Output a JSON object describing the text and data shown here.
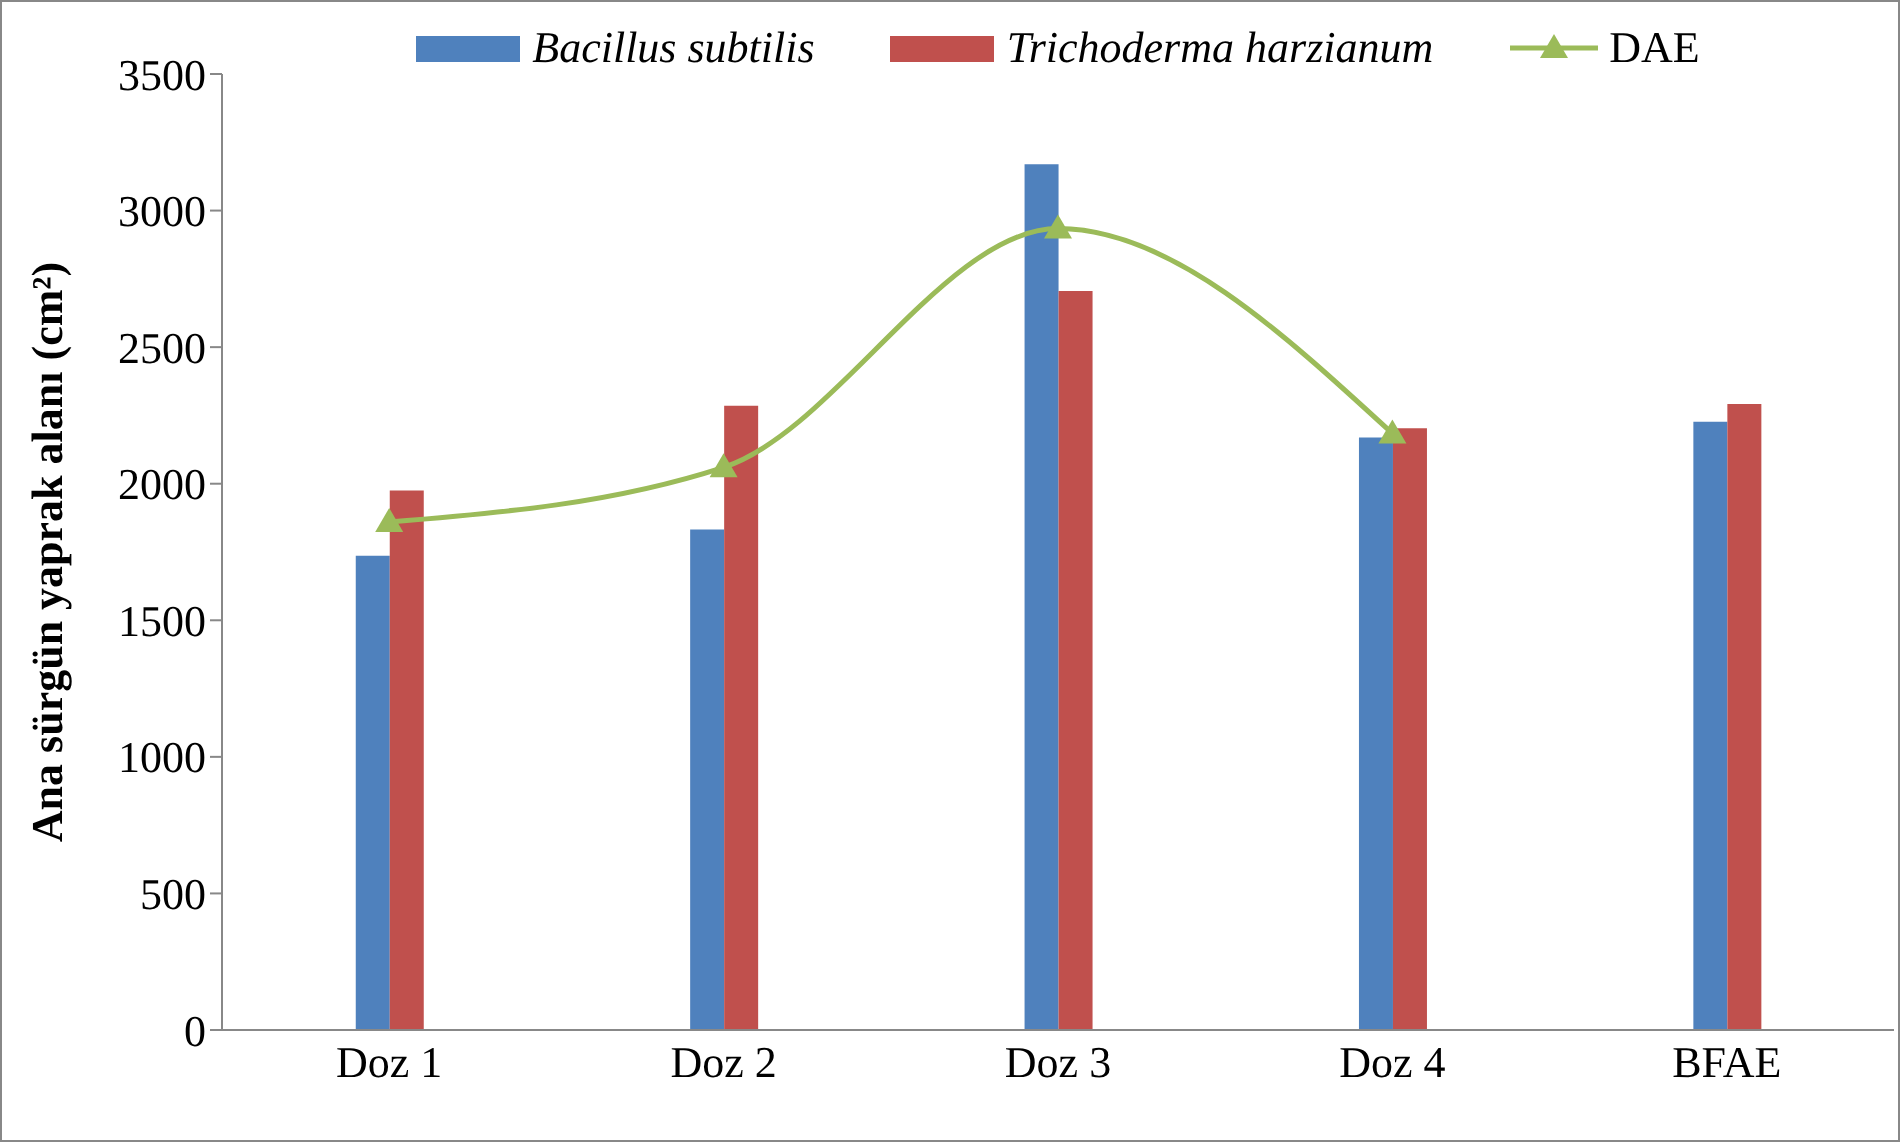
{
  "chart_data": {
    "type": "bar",
    "ylabel": "Ana sürgün yaprak alanı (cm²)",
    "categories": [
      "Doz 1",
      "Doz 2",
      "Doz 3",
      "Doz 4",
      "BFAE"
    ],
    "series": [
      {
        "name": "Bacillus subtilis",
        "color": "#4f81bd",
        "values": [
          1736,
          1832,
          3170,
          2169,
          2227
        ]
      },
      {
        "name": "Trichoderma harzianum",
        "color": "#c0504d",
        "values": [
          1975,
          2285,
          2706,
          2203,
          2292
        ]
      },
      {
        "name": "DAE",
        "type": "line",
        "color": "#9bbb59",
        "marker": "triangle",
        "values": [
          1860,
          2060,
          2934,
          2184,
          null
        ]
      }
    ],
    "ylim": [
      0,
      3500
    ],
    "yticks": [
      0,
      500,
      1000,
      1500,
      2000,
      2500,
      3000,
      3500
    ],
    "grid": false,
    "legend": "top"
  }
}
